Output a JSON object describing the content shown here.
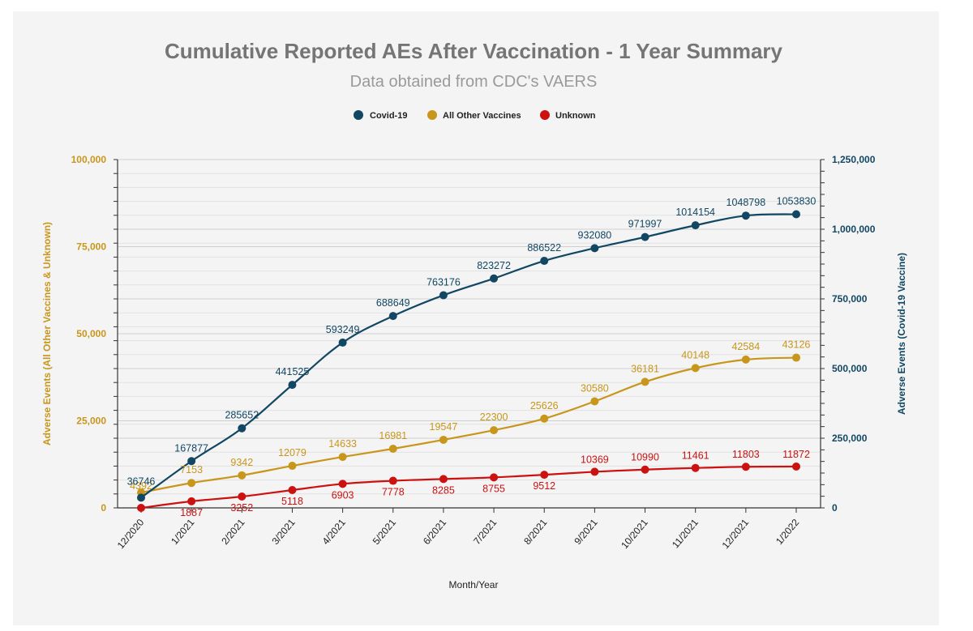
{
  "chart_data": {
    "type": "line",
    "title": "Cumulative Reported AEs After Vaccination - 1 Year Summary",
    "subtitle": "Data obtained from CDC's VAERS",
    "xlabel": "Month/Year",
    "ylabel_left": "Adverse Events (All Other Vaccines & Unknown)",
    "ylabel_right": "Adverse Events (Covid-19 Vaccine)",
    "categories": [
      "12/2020",
      "1/2021",
      "2/2021",
      "3/2021",
      "4/2021",
      "5/2021",
      "6/2021",
      "7/2021",
      "8/2021",
      "9/2021",
      "10/2021",
      "11/2021",
      "12/2021",
      "1/2022"
    ],
    "ylim_left": [
      0,
      100000
    ],
    "ylim_right": [
      0,
      1250000
    ],
    "yticks_left": [
      "0",
      "25,000",
      "50,000",
      "75,000",
      "100,000"
    ],
    "yticks_right": [
      "0",
      "250,000",
      "500,000",
      "750,000",
      "1,000,000",
      "1,250,000"
    ],
    "legend": [
      "Covid-19",
      "All Other Vaccines",
      "Unknown"
    ],
    "legend_position": "top-center",
    "grid": true,
    "series": [
      {
        "name": "Covid-19",
        "axis": "right",
        "color": "#124763",
        "values": [
          36746,
          167877,
          285652,
          441525,
          593249,
          688649,
          763176,
          823272,
          886522,
          932080,
          971997,
          1014154,
          1048798,
          1053830
        ]
      },
      {
        "name": "All Other Vaccines",
        "axis": "left",
        "color": "#c8961b",
        "values": [
          4392,
          7153,
          9342,
          12079,
          14633,
          16981,
          19547,
          22300,
          25626,
          30580,
          36181,
          40148,
          42584,
          43126
        ]
      },
      {
        "name": "Unknown",
        "axis": "left",
        "color": "#cc1111",
        "values": [
          0,
          1887,
          3252,
          5118,
          6903,
          7778,
          8285,
          8755,
          9512,
          10369,
          10990,
          11461,
          11803,
          11872
        ]
      }
    ],
    "data_labels": {
      "Covid-19": [
        "36746",
        "167877",
        "285652",
        "441525",
        "593249",
        "688649",
        "763176",
        "823272",
        "886522",
        "932080",
        "971997",
        "1014154",
        "1048798",
        "1053830"
      ],
      "All Other Vaccines": [
        "4392",
        "7153",
        "9342",
        "12079",
        "14633",
        "16981",
        "19547",
        "22300",
        "25626",
        "30580",
        "36181",
        "40148",
        "42584",
        "43126"
      ],
      "Unknown": [
        "",
        "1887",
        "3252",
        "5118",
        "6903",
        "7778",
        "8285",
        "8755",
        "9512",
        "10369",
        "10990",
        "11461",
        "11803",
        "11872"
      ]
    }
  }
}
